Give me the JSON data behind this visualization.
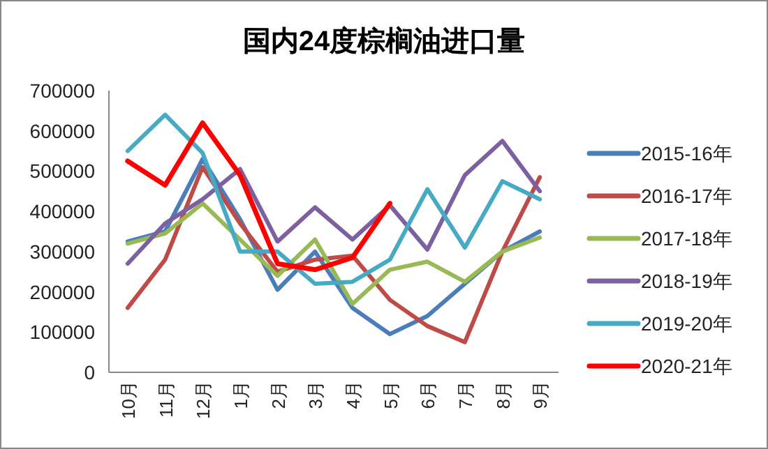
{
  "chart_data": {
    "type": "line",
    "title": "国内24度棕榈油进口量",
    "categories": [
      "10月",
      "11月",
      "12月",
      "1月",
      "2月",
      "3月",
      "4月",
      "5月",
      "6月",
      "7月",
      "8月",
      "9月"
    ],
    "ylim": [
      0,
      700000
    ],
    "yticks": [
      0,
      100000,
      200000,
      300000,
      400000,
      500000,
      600000,
      700000
    ],
    "grid": false,
    "legend": "right",
    "marker": "none",
    "line_style": "solid",
    "series": [
      {
        "name": "2015-16年",
        "color": "#4a7ebb",
        "values": [
          325000,
          350000,
          530000,
          380000,
          205000,
          300000,
          160000,
          95000,
          140000,
          220000,
          300000,
          350000
        ]
      },
      {
        "name": "2016-17年",
        "color": "#be4b48",
        "values": [
          160000,
          280000,
          510000,
          370000,
          250000,
          280000,
          290000,
          180000,
          115000,
          75000,
          300000,
          485000
        ]
      },
      {
        "name": "2017-18年",
        "color": "#98b954",
        "values": [
          320000,
          345000,
          420000,
          330000,
          240000,
          330000,
          170000,
          255000,
          275000,
          225000,
          300000,
          335000
        ]
      },
      {
        "name": "2018-19年",
        "color": "#7d60a0",
        "values": [
          270000,
          370000,
          430000,
          505000,
          325000,
          410000,
          330000,
          415000,
          305000,
          490000,
          575000,
          450000
        ]
      },
      {
        "name": "2019-20年",
        "color": "#46aac5",
        "values": [
          550000,
          640000,
          545000,
          300000,
          300000,
          220000,
          225000,
          280000,
          455000,
          310000,
          475000,
          430000
        ]
      },
      {
        "name": "2020-21年",
        "color": "#ff0000",
        "values": [
          525000,
          465000,
          620000,
          490000,
          270000,
          255000,
          285000,
          420000,
          null,
          null,
          null,
          null
        ]
      }
    ]
  }
}
